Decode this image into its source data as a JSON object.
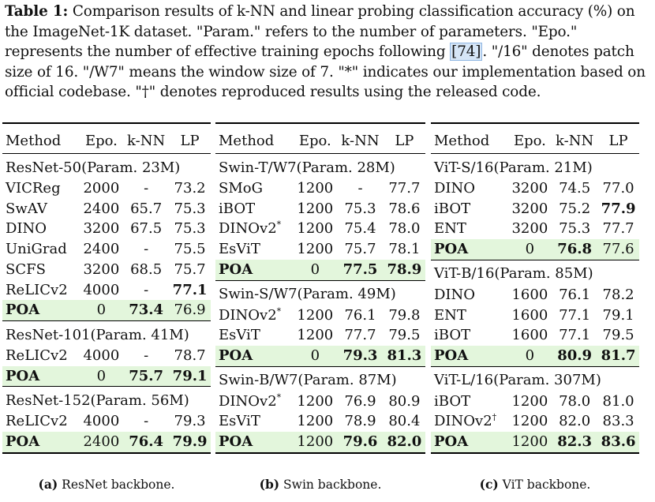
{
  "caption": {
    "label": "Table 1:",
    "pre": " Comparison results of k-NN and linear probing classification accuracy (%) on the ImageNet-1K dataset. \"Param.\" refers to the number of parameters. \"Epo.\" represents the number of effective training epochs following ",
    "cite": "[74]",
    "post": ". \"/16\" denotes patch size of 16. \"/W7\" means the window size of 7. \"*\" indicates our implementation based on official codebase. \"†\" denotes reproduced results using the released code."
  },
  "panels": [
    {
      "header": [
        "Method",
        "Epo.",
        "k-NN",
        "LP"
      ],
      "groups": [
        {
          "title": "ResNet-50(Param. 23M)",
          "rows": [
            {
              "method": "VICReg",
              "epo": "2000",
              "knn": "-",
              "lp": "73.2"
            },
            {
              "method": "SwAV",
              "epo": "2400",
              "knn": "65.7",
              "lp": "75.3"
            },
            {
              "method": "DINO",
              "epo": "3200",
              "knn": "67.5",
              "lp": "75.3"
            },
            {
              "method": "UniGrad",
              "epo": "2400",
              "knn": "-",
              "lp": "75.5"
            },
            {
              "method": "SCFS",
              "epo": "3200",
              "knn": "68.5",
              "lp": "75.7"
            },
            {
              "method": "ReLICv2",
              "epo": "4000",
              "knn": "-",
              "lp": "77.1"
            },
            {
              "method": "POA",
              "epo": "0",
              "knn": "73.4",
              "lp": "76.9"
            }
          ]
        },
        {
          "title": "ResNet-101(Param. 41M)",
          "rows": [
            {
              "method": "ReLICv2",
              "epo": "4000",
              "knn": "-",
              "lp": "78.7"
            },
            {
              "method": "POA",
              "epo": "0",
              "knn": "75.7",
              "lp": "79.1"
            }
          ]
        },
        {
          "title": "ResNet-152(Param. 56M)",
          "rows": [
            {
              "method": "ReLICv2",
              "epo": "4000",
              "knn": "-",
              "lp": "79.3"
            },
            {
              "method": "POA",
              "epo": "2400",
              "knn": "76.4",
              "lp": "79.9"
            }
          ]
        }
      ],
      "sublabel": "(a)",
      "subtext": " ResNet backbone."
    },
    {
      "header": [
        "Method",
        "Epo.",
        "k-NN",
        "LP"
      ],
      "groups": [
        {
          "title": "Swin-T/W7(Param. 28M)",
          "rows": [
            {
              "method": "SMoG",
              "epo": "1200",
              "knn": "-",
              "lp": "77.7"
            },
            {
              "method": "iBOT",
              "epo": "1200",
              "knn": "75.3",
              "lp": "78.6"
            },
            {
              "method": "DINOv2",
              "mark": "*",
              "epo": "1200",
              "knn": "75.4",
              "lp": "78.0"
            },
            {
              "method": "EsViT",
              "epo": "1200",
              "knn": "75.7",
              "lp": "78.1"
            },
            {
              "method": "POA",
              "epo": "0",
              "knn": "77.5",
              "lp": "78.9"
            }
          ]
        },
        {
          "title": "Swin-S/W7(Param. 49M)",
          "rows": [
            {
              "method": "DINOv2",
              "mark": "*",
              "epo": "1200",
              "knn": "76.1",
              "lp": "79.8"
            },
            {
              "method": "EsViT",
              "epo": "1200",
              "knn": "77.7",
              "lp": "79.5"
            },
            {
              "method": "POA",
              "epo": "0",
              "knn": "79.3",
              "lp": "81.3"
            }
          ]
        },
        {
          "title": "Swin-B/W7(Param. 87M)",
          "rows": [
            {
              "method": "DINOv2",
              "mark": "*",
              "epo": "1200",
              "knn": "76.9",
              "lp": "80.9"
            },
            {
              "method": "EsViT",
              "epo": "1200",
              "knn": "78.9",
              "lp": "80.4"
            },
            {
              "method": "POA",
              "epo": "1200",
              "knn": "79.6",
              "lp": "82.0"
            }
          ]
        }
      ],
      "sublabel": "(b)",
      "subtext": " Swin backbone."
    },
    {
      "header": [
        "Method",
        "Epo.",
        "k-NN",
        "LP"
      ],
      "groups": [
        {
          "title": "ViT-S/16(Param. 21M)",
          "rows": [
            {
              "method": "DINO",
              "epo": "3200",
              "knn": "74.5",
              "lp": "77.0"
            },
            {
              "method": "iBOT",
              "epo": "3200",
              "knn": "75.2",
              "lp": "77.9"
            },
            {
              "method": "ENT",
              "epo": "3200",
              "knn": "75.3",
              "lp": "77.7"
            },
            {
              "method": "POA",
              "epo": "0",
              "knn": "76.8",
              "lp": "77.6"
            }
          ]
        },
        {
          "title": "ViT-B/16(Param. 85M)",
          "rows": [
            {
              "method": "DINO",
              "epo": "1600",
              "knn": "76.1",
              "lp": "78.2"
            },
            {
              "method": "ENT",
              "epo": "1600",
              "knn": "77.1",
              "lp": "79.1"
            },
            {
              "method": "iBOT",
              "epo": "1600",
              "knn": "77.1",
              "lp": "79.5"
            },
            {
              "method": "POA",
              "epo": "0",
              "knn": "80.9",
              "lp": "81.7"
            }
          ]
        },
        {
          "title": "ViT-L/16(Param. 307M)",
          "rows": [
            {
              "method": "iBOT",
              "epo": "1200",
              "knn": "78.0",
              "lp": "81.0"
            },
            {
              "method": "DINOv2",
              "mark": "†",
              "epo": "1200",
              "knn": "82.0",
              "lp": "83.3"
            },
            {
              "method": "POA",
              "epo": "1200",
              "knn": "82.3",
              "lp": "83.6"
            }
          ]
        }
      ],
      "sublabel": "(c)",
      "subtext": " ViT backbone."
    }
  ],
  "bold_cells": [
    "0.0.5.lp",
    "0.0.6.knn",
    "0.1.1.knn",
    "0.1.1.lp",
    "0.2.1.knn",
    "0.2.1.lp",
    "1.0.4.knn",
    "1.0.4.lp",
    "1.1.2.knn",
    "1.1.2.lp",
    "1.2.2.knn",
    "1.2.2.lp",
    "2.0.1.lp",
    "2.0.3.knn",
    "2.1.3.knn",
    "2.1.3.lp",
    "2.2.2.knn",
    "2.2.2.lp"
  ],
  "colors": {
    "highlight": "#e3f6dc",
    "cite_bg": "#d6e6f7"
  }
}
